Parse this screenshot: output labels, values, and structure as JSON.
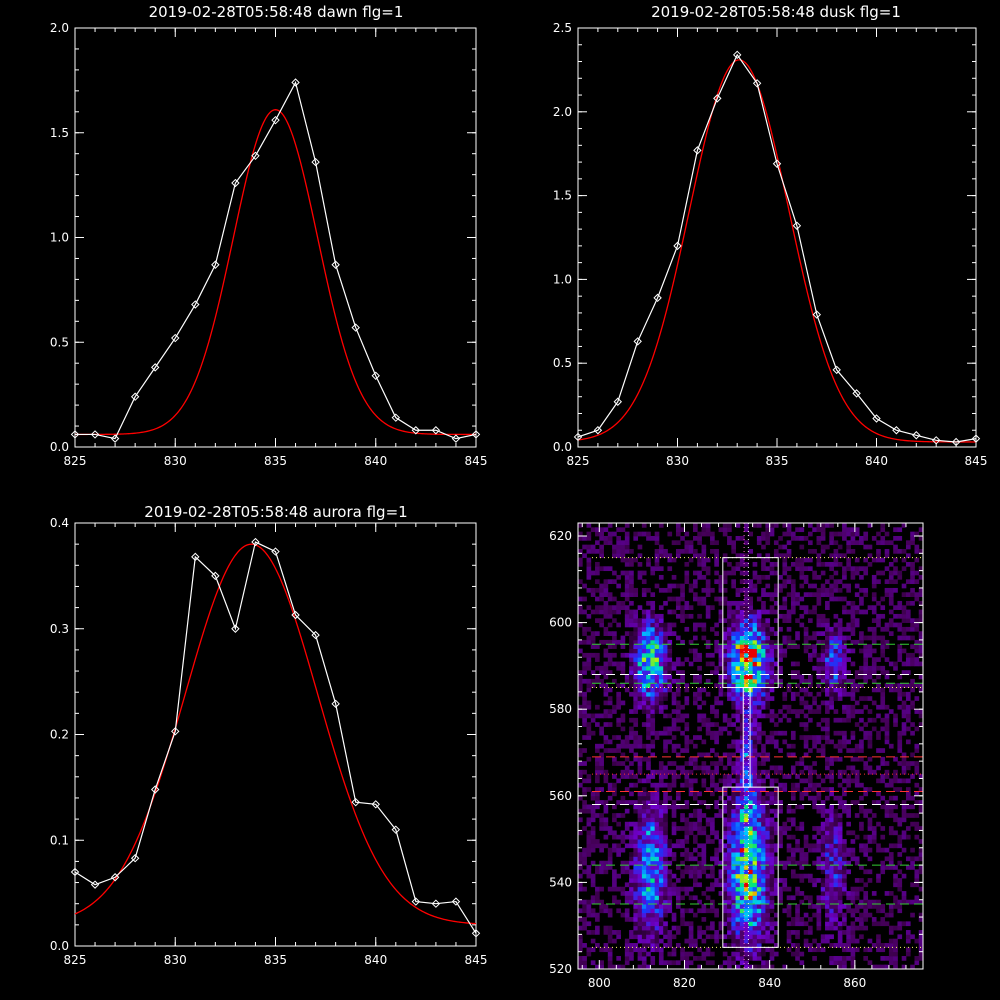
{
  "chart_data": [
    {
      "type": "line",
      "title": "2019-02-28T05:58:48 dawn flg=1",
      "xlim": [
        825,
        845
      ],
      "ylim": [
        0,
        2.0
      ],
      "xticks": [
        825,
        830,
        835,
        840,
        845
      ],
      "yticks": [
        0.0,
        0.5,
        1.0,
        1.5,
        2.0
      ],
      "ytick_labels": [
        "0.0",
        "0.5",
        "1.0",
        "1.5",
        "2.0"
      ],
      "series": [
        {
          "kind": "data",
          "color": "#ffffff",
          "marker": "diamond",
          "x": [
            825,
            826,
            827,
            828,
            829,
            830,
            831,
            832,
            833,
            834,
            835,
            836,
            837,
            838,
            839,
            840,
            841,
            842,
            843,
            844,
            845
          ],
          "y": [
            0.06,
            0.06,
            0.04,
            0.24,
            0.38,
            0.52,
            0.68,
            0.87,
            1.26,
            1.39,
            1.56,
            1.74,
            1.36,
            0.87,
            0.57,
            0.34,
            0.14,
            0.08,
            0.08,
            0.04,
            0.06
          ]
        },
        {
          "kind": "fit",
          "color": "#ff0000",
          "amp": 1.55,
          "center": 835.0,
          "sigma": 2.1,
          "offset": 0.06
        }
      ]
    },
    {
      "type": "line",
      "title": "2019-02-28T05:58:48 dusk flg=1",
      "xlim": [
        825,
        845
      ],
      "ylim": [
        0,
        2.5
      ],
      "xticks": [
        825,
        830,
        835,
        840,
        845
      ],
      "yticks": [
        0.0,
        0.5,
        1.0,
        1.5,
        2.0,
        2.5
      ],
      "ytick_labels": [
        "0.0",
        "0.5",
        "1.0",
        "1.5",
        "2.0",
        "2.5"
      ],
      "series": [
        {
          "kind": "data",
          "color": "#ffffff",
          "marker": "diamond",
          "x": [
            825,
            826,
            827,
            828,
            829,
            830,
            831,
            832,
            833,
            834,
            835,
            836,
            837,
            838,
            839,
            840,
            841,
            842,
            843,
            844,
            845
          ],
          "y": [
            0.06,
            0.1,
            0.27,
            0.63,
            0.89,
            1.2,
            1.77,
            2.08,
            2.34,
            2.17,
            1.69,
            1.32,
            0.79,
            0.46,
            0.32,
            0.17,
            0.1,
            0.07,
            0.04,
            0.03,
            0.05
          ]
        },
        {
          "kind": "fit",
          "color": "#ff0000",
          "amp": 2.28,
          "center": 833.1,
          "sigma": 2.5,
          "offset": 0.03
        }
      ]
    },
    {
      "type": "line",
      "title": "2019-02-28T05:58:48 aurora flg=1",
      "xlim": [
        825,
        845
      ],
      "ylim": [
        0,
        0.4
      ],
      "xticks": [
        825,
        830,
        835,
        840,
        845
      ],
      "yticks": [
        0.0,
        0.1,
        0.2,
        0.3,
        0.4
      ],
      "ytick_labels": [
        "0.0",
        "0.1",
        "0.2",
        "0.3",
        "0.4"
      ],
      "series": [
        {
          "kind": "data",
          "color": "#ffffff",
          "marker": "diamond",
          "x": [
            825,
            826,
            827,
            828,
            829,
            830,
            831,
            832,
            833,
            834,
            835,
            836,
            837,
            838,
            839,
            840,
            841,
            842,
            843,
            844,
            845
          ],
          "y": [
            0.07,
            0.058,
            0.065,
            0.083,
            0.148,
            0.203,
            0.368,
            0.35,
            0.3,
            0.382,
            0.373,
            0.313,
            0.294,
            0.229,
            0.136,
            0.134,
            0.11,
            0.042,
            0.04,
            0.042,
            0.012
          ]
        },
        {
          "kind": "fit",
          "color": "#ff0000",
          "amp": 0.36,
          "center": 833.8,
          "sigma": 3.3,
          "offset": 0.02
        }
      ]
    },
    {
      "type": "heatmap",
      "title": "",
      "xlim": [
        795,
        876
      ],
      "ylim": [
        520,
        623
      ],
      "xticks": [
        800,
        820,
        840,
        860
      ],
      "yticks": [
        520,
        540,
        560,
        580,
        600,
        620
      ],
      "ytick_labels": [
        "520",
        "540",
        "560",
        "580",
        "600",
        "620"
      ],
      "sources": [
        {
          "cx": 812,
          "cy": 591,
          "sx": 2.5,
          "sy": 6,
          "amp": 0.72
        },
        {
          "cx": 812,
          "cy": 543,
          "sx": 2.5,
          "sy": 10,
          "amp": 0.55
        },
        {
          "cx": 835,
          "cy": 591,
          "sx": 3,
          "sy": 6,
          "amp": 1.0
        },
        {
          "cx": 835,
          "cy": 543,
          "sx": 3,
          "sy": 11,
          "amp": 0.82
        },
        {
          "cx": 835,
          "cy": 567,
          "sx": 1.2,
          "sy": 8,
          "amp": 0.4
        },
        {
          "cx": 855,
          "cy": 591,
          "sx": 2,
          "sy": 5,
          "amp": 0.38
        },
        {
          "cx": 855,
          "cy": 543,
          "sx": 2,
          "sy": 9,
          "amp": 0.3
        }
      ],
      "boxes": [
        {
          "x": [
            829,
            842
          ],
          "y": [
            585,
            615
          ]
        },
        {
          "x": [
            829,
            842
          ],
          "y": [
            525,
            562
          ]
        }
      ],
      "hlines": [
        {
          "y": 615,
          "color": "#ffff66",
          "style": "dotted"
        },
        {
          "y": 595,
          "color": "#33cc33",
          "style": "dashed"
        },
        {
          "y": 588,
          "color": "#ffffff",
          "style": "dashed"
        },
        {
          "y": 586,
          "color": "#33cc33",
          "style": "dashed"
        },
        {
          "y": 585,
          "color": "#ffff66",
          "style": "dotted"
        },
        {
          "y": 569,
          "color": "#ff3333",
          "style": "dashed"
        },
        {
          "y": 565,
          "color": "#ff3333",
          "style": "dotted"
        },
        {
          "y": 561,
          "color": "#ff3333",
          "style": "dashed"
        },
        {
          "y": 558,
          "color": "#ffffff",
          "style": "dashed"
        },
        {
          "y": 544,
          "color": "#33cc33",
          "style": "dashed"
        },
        {
          "y": 535,
          "color": "#33cc33",
          "style": "dashed"
        },
        {
          "y": 525,
          "color": "#ffff66",
          "style": "dotted"
        }
      ],
      "vlines": [
        {
          "x": 834,
          "color": "#ff66cc",
          "style": "dotted"
        },
        {
          "x": 835,
          "color": "#ffffff",
          "style": "dotted"
        }
      ]
    }
  ]
}
